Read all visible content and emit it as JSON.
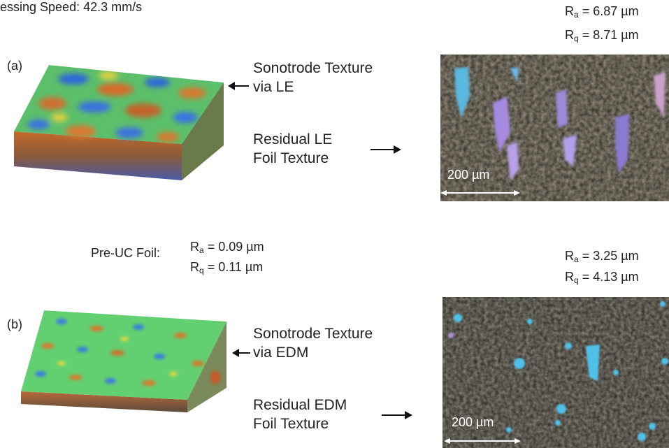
{
  "header": {
    "speed_text": "essing Speed: 42.3 mm/s"
  },
  "panel_a": {
    "label": "(a)",
    "sonotrode_line1": "Sonotrode Texture",
    "sonotrode_line2": "via LE",
    "residual_line1": "Residual LE",
    "residual_line2": "Foil Texture",
    "ra": {
      "symbol": "R",
      "subscript": "a",
      "value": "= 6.87 µm"
    },
    "rq": {
      "symbol": "R",
      "subscript": "q",
      "value": "= 8.71 µm"
    },
    "scale_bar": "200 µm"
  },
  "pre_uc": {
    "label": "Pre-UC Foil:",
    "ra": {
      "symbol": "R",
      "subscript": "a",
      "value": "= 0.09 µm"
    },
    "rq": {
      "symbol": "R",
      "subscript": "q",
      "value": "= 0.11 µm"
    }
  },
  "panel_b": {
    "label": "(b)",
    "sonotrode_line1": "Sonotrode Texture",
    "sonotrode_line2": "via EDM",
    "residual_line1": "Residual EDM",
    "residual_line2": "Foil Texture",
    "ra": {
      "symbol": "R",
      "subscript": "a",
      "value": "= 3.25 µm"
    },
    "rq": {
      "symbol": "R",
      "subscript": "q",
      "value": "= 4.13 µm"
    },
    "scale_bar": "200 µm"
  }
}
